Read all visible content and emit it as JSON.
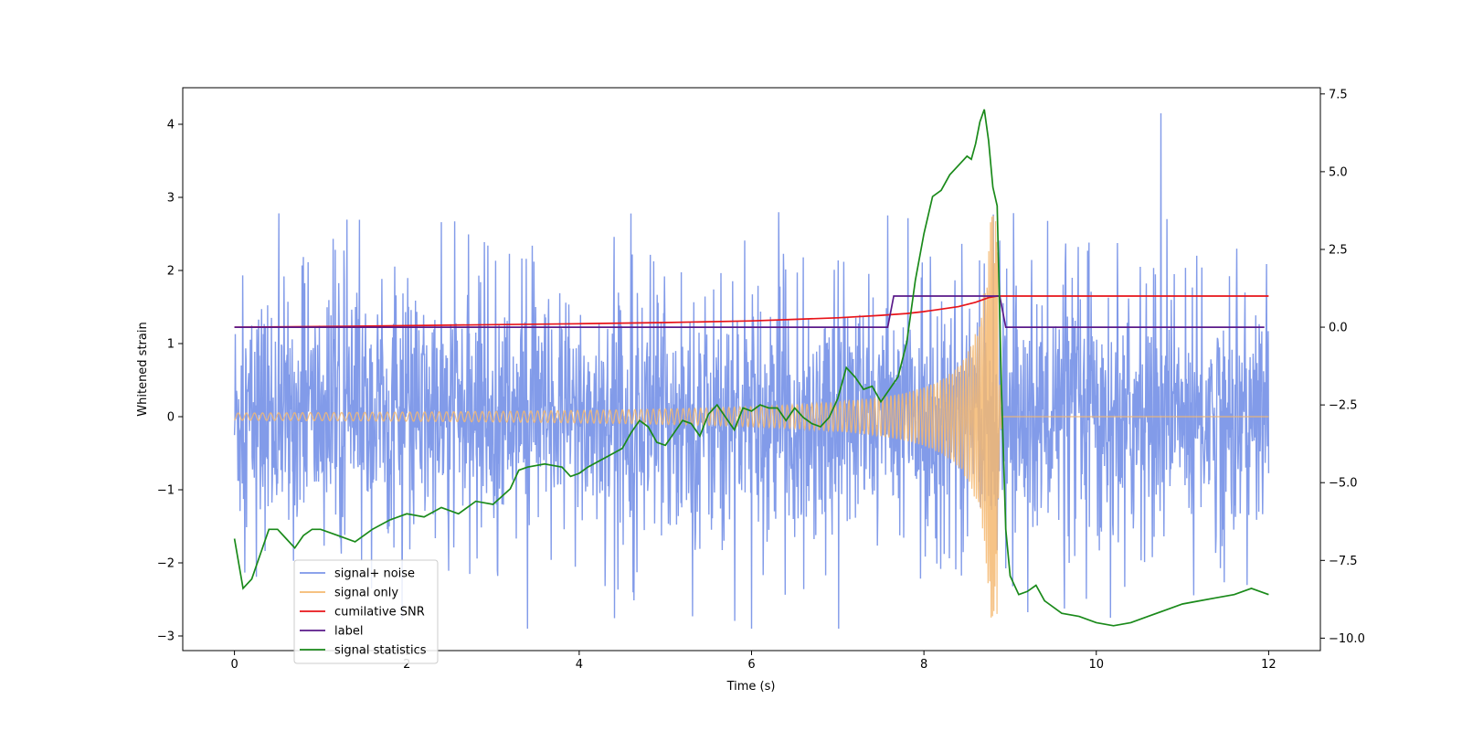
{
  "chart_data": {
    "type": "line",
    "xlabel": "Time (s)",
    "ylabel": "Whitened strain",
    "y2label": "",
    "xlim": [
      -0.6,
      12.6
    ],
    "ylim": [
      -3.2,
      4.5
    ],
    "y2lim": [
      -10.4,
      7.7
    ],
    "xticks": [
      0,
      2,
      4,
      6,
      8,
      10,
      12
    ],
    "yticks": [
      -3,
      -2,
      -1,
      0,
      1,
      2,
      3,
      4
    ],
    "y2ticks": [
      -10.0,
      -7.5,
      -5.0,
      -2.5,
      0.0,
      2.5,
      5.0,
      7.5
    ],
    "legend_position": "lower-left",
    "grid": false,
    "series": [
      {
        "name": "signal+ noise",
        "color": "#7b96e8",
        "axis": "left",
        "kind": "noisy",
        "x_range": [
          0,
          12
        ],
        "envelope_typical": [
          -1.3,
          1.3
        ],
        "peak_max": 4.15,
        "peak_min": -2.9
      },
      {
        "name": "signal only",
        "color": "#f5b971",
        "axis": "left",
        "kind": "chirp",
        "x_range": [
          0,
          12
        ],
        "merger_time": 8.85,
        "peak_amplitude": 2.75,
        "early_amplitude": 0.05
      },
      {
        "name": "cumilative SNR",
        "color": "#e8141a",
        "axis": "right",
        "x": [
          0,
          1,
          2,
          3,
          4,
          5,
          6,
          6.5,
          7,
          7.5,
          7.8,
          8.0,
          8.2,
          8.4,
          8.6,
          8.75,
          8.85,
          8.9,
          12
        ],
        "values": [
          0.0,
          0.02,
          0.05,
          0.08,
          0.11,
          0.15,
          0.2,
          0.25,
          0.3,
          0.38,
          0.44,
          0.5,
          0.58,
          0.66,
          0.8,
          0.95,
          1.0,
          1.0,
          1.0
        ]
      },
      {
        "name": "label",
        "color": "#5a1a8a",
        "axis": "right",
        "x": [
          0,
          7.58,
          7.65,
          8.88,
          8.95,
          11.95
        ],
        "values": [
          0,
          0,
          1,
          1,
          0,
          0
        ]
      },
      {
        "name": "signal statistics",
        "color": "#1a8a1a",
        "axis": "right",
        "x": [
          0,
          0.1,
          0.2,
          0.3,
          0.4,
          0.5,
          0.6,
          0.7,
          0.8,
          0.9,
          1.0,
          1.2,
          1.4,
          1.6,
          1.8,
          2.0,
          2.2,
          2.4,
          2.6,
          2.8,
          3.0,
          3.2,
          3.3,
          3.4,
          3.6,
          3.8,
          3.9,
          4.0,
          4.1,
          4.3,
          4.5,
          4.6,
          4.7,
          4.8,
          4.9,
          5.0,
          5.1,
          5.2,
          5.3,
          5.4,
          5.5,
          5.6,
          5.7,
          5.8,
          5.9,
          6.0,
          6.1,
          6.2,
          6.3,
          6.4,
          6.5,
          6.6,
          6.7,
          6.8,
          6.9,
          7.0,
          7.1,
          7.2,
          7.3,
          7.4,
          7.5,
          7.6,
          7.7,
          7.8,
          7.9,
          8.0,
          8.1,
          8.2,
          8.3,
          8.4,
          8.5,
          8.55,
          8.6,
          8.65,
          8.7,
          8.75,
          8.8,
          8.85,
          8.9,
          8.95,
          9.0,
          9.1,
          9.2,
          9.3,
          9.4,
          9.6,
          9.8,
          10.0,
          10.2,
          10.4,
          10.6,
          10.8,
          11.0,
          11.2,
          11.4,
          11.6,
          11.8,
          12.0
        ],
        "values": [
          -6.8,
          -8.4,
          -8.1,
          -7.3,
          -6.5,
          -6.5,
          -6.8,
          -7.1,
          -6.7,
          -6.5,
          -6.5,
          -6.7,
          -6.9,
          -6.5,
          -6.2,
          -6.0,
          -6.1,
          -5.8,
          -6.0,
          -5.6,
          -5.7,
          -5.2,
          -4.6,
          -4.5,
          -4.4,
          -4.5,
          -4.8,
          -4.7,
          -4.5,
          -4.2,
          -3.9,
          -3.4,
          -3.0,
          -3.2,
          -3.7,
          -3.8,
          -3.4,
          -3.0,
          -3.1,
          -3.5,
          -2.8,
          -2.5,
          -2.9,
          -3.3,
          -2.6,
          -2.7,
          -2.5,
          -2.6,
          -2.6,
          -3.0,
          -2.6,
          -2.9,
          -3.1,
          -3.2,
          -2.9,
          -2.3,
          -1.3,
          -1.6,
          -2.0,
          -1.9,
          -2.4,
          -2.0,
          -1.6,
          -0.5,
          1.5,
          3.0,
          4.2,
          4.4,
          4.9,
          5.2,
          5.5,
          5.4,
          5.9,
          6.6,
          7.0,
          6.0,
          4.5,
          3.9,
          -2.0,
          -6.5,
          -8.0,
          -8.6,
          -8.5,
          -8.3,
          -8.8,
          -9.2,
          -9.3,
          -9.5,
          -9.6,
          -9.5,
          -9.3,
          -9.1,
          -8.9,
          -8.8,
          -8.7,
          -8.6,
          -8.4,
          -8.6
        ]
      }
    ]
  }
}
